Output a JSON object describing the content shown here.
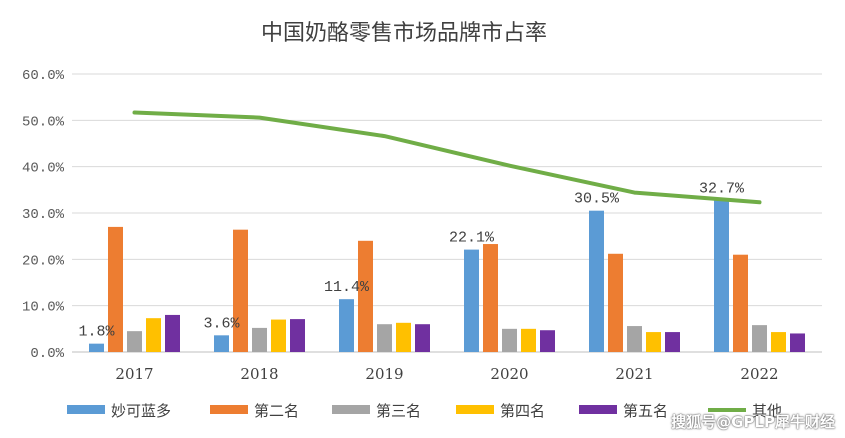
{
  "chart_data": {
    "type": "bar",
    "title": "中国奶酪零售市场品牌市占率",
    "categories": [
      "2017",
      "2018",
      "2019",
      "2020",
      "2021",
      "2022"
    ],
    "ylim": [
      0,
      60
    ],
    "yticks": [
      "0.0%",
      "10.0%",
      "20.0%",
      "30.0%",
      "40.0%",
      "50.0%",
      "60.0%"
    ],
    "grid": true,
    "legend_position": "bottom",
    "series": [
      {
        "name": "妙可蓝多",
        "type": "bar",
        "color": "#5B9BD5",
        "values": [
          1.8,
          3.6,
          11.4,
          22.1,
          30.5,
          32.7
        ],
        "labels": [
          "1.8%",
          "3.6%",
          "11.4%",
          "22.1%",
          "30.5%",
          "32.7%"
        ]
      },
      {
        "name": "第二名",
        "type": "bar",
        "color": "#ED7D31",
        "values": [
          27.0,
          26.4,
          24.0,
          23.3,
          21.2,
          21.0
        ]
      },
      {
        "name": "第三名",
        "type": "bar",
        "color": "#A5A5A5",
        "values": [
          4.5,
          5.2,
          6.0,
          5.0,
          5.6,
          5.8
        ]
      },
      {
        "name": "第四名",
        "type": "bar",
        "color": "#FFC000",
        "values": [
          7.3,
          7.0,
          6.3,
          5.0,
          4.3,
          4.3
        ]
      },
      {
        "name": "第五名",
        "type": "bar",
        "color": "#7030A0",
        "values": [
          8.0,
          7.1,
          6.0,
          4.7,
          4.3,
          4.0
        ]
      },
      {
        "name": "其他",
        "type": "line",
        "color": "#70AD47",
        "values": [
          51.7,
          50.6,
          46.6,
          40.2,
          34.4,
          32.3
        ]
      }
    ]
  },
  "watermark": "搜狐号@GPLP犀牛财经"
}
